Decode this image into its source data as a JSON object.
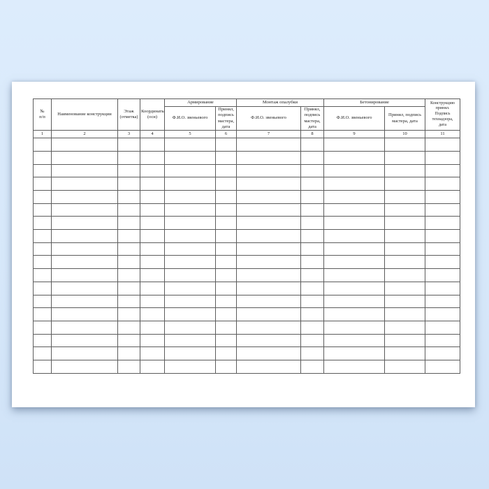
{
  "colors": {
    "background": "#d7e8fa",
    "paper": "#ffffff",
    "table_line": "#5c5c5c",
    "text": "#1f1f1f"
  },
  "document": {
    "type": "construction-work-log-form",
    "language": "ru"
  },
  "table": {
    "groups": {
      "reinforcement": "Армирование",
      "formwork": "Монтаж опалубки",
      "concreting": "Бетонирование"
    },
    "headers": {
      "col1": "№\nп/п",
      "col2": "Наименование конструкции",
      "col3": "Этаж\n(отметка)",
      "col4": "Координаты\n(оси)",
      "col5": "Ф.И.О. звеньевого",
      "col6": "Принял,\nподпись\nмастера,\nдата",
      "col7": "Ф.И.О. звеньевого",
      "col8": "Принял,\nподпись\nмастера,\nдата",
      "col9": "Ф.И.О. звеньевого",
      "col10": "Принял, подпись\nмастера, дата",
      "col11": "Конструкцию\nпринял.\nПодпись\nтехнадзора,\nдата"
    },
    "column_numbers": [
      "1",
      "2",
      "3",
      "4",
      "5",
      "6",
      "7",
      "8",
      "9",
      "10",
      "11"
    ],
    "body_rows": 18,
    "body_columns": 11,
    "body_cells_empty": true
  }
}
